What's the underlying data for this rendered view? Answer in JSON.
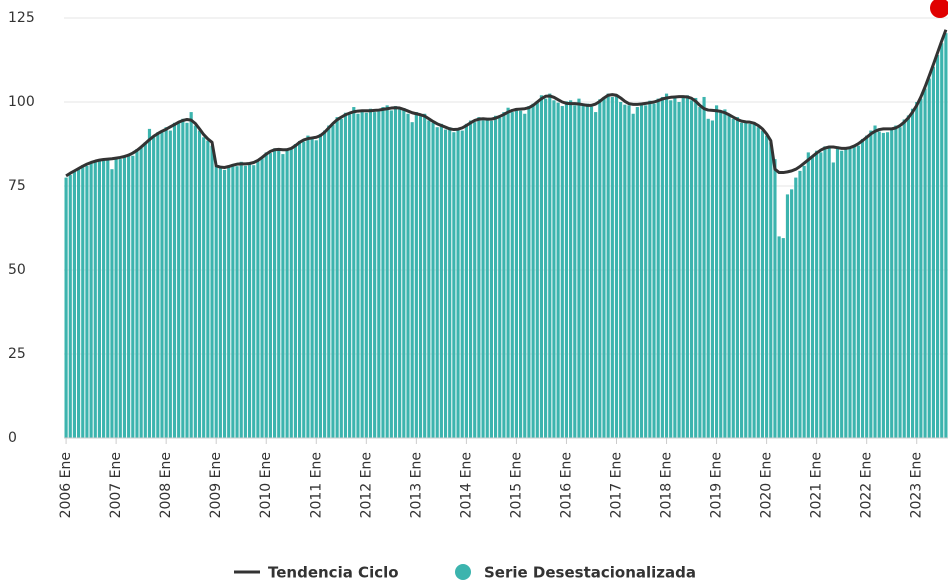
{
  "chart_data": {
    "type": "bar",
    "categories": [
      "2006 Ene",
      null,
      null,
      null,
      null,
      null,
      null,
      null,
      null,
      null,
      null,
      null,
      "2007 Ene",
      null,
      null,
      null,
      null,
      null,
      null,
      null,
      null,
      null,
      null,
      null,
      "2008 Ene",
      null,
      null,
      null,
      null,
      null,
      null,
      null,
      null,
      null,
      null,
      null,
      "2009 Ene",
      null,
      null,
      null,
      null,
      null,
      null,
      null,
      null,
      null,
      null,
      null,
      "2010 Ene",
      null,
      null,
      null,
      null,
      null,
      null,
      null,
      null,
      null,
      null,
      null,
      "2011 Ene",
      null,
      null,
      null,
      null,
      null,
      null,
      null,
      null,
      null,
      null,
      null,
      "2012 Ene",
      null,
      null,
      null,
      null,
      null,
      null,
      null,
      null,
      null,
      null,
      null,
      "2013 Ene",
      null,
      null,
      null,
      null,
      null,
      null,
      null,
      null,
      null,
      null,
      null,
      "2014 Ene",
      null,
      null,
      null,
      null,
      null,
      null,
      null,
      null,
      null,
      null,
      null,
      "2015 Ene",
      null,
      null,
      null,
      null,
      null,
      null,
      null,
      null,
      null,
      null,
      null,
      "2016 Ene",
      null,
      null,
      null,
      null,
      null,
      null,
      null,
      null,
      null,
      null,
      null,
      "2017 Ene",
      null,
      null,
      null,
      null,
      null,
      null,
      null,
      null,
      null,
      null,
      null,
      "2018 Ene",
      null,
      null,
      null,
      null,
      null,
      null,
      null,
      null,
      null,
      null,
      null,
      "2019 Ene",
      null,
      null,
      null,
      null,
      null,
      null,
      null,
      null,
      null,
      null,
      null,
      "2020 Ene",
      null,
      null,
      null,
      null,
      null,
      null,
      null,
      null,
      null,
      null,
      null,
      "2021 Ene",
      null,
      null,
      null,
      null,
      null,
      null,
      null,
      null,
      null,
      null,
      null,
      "2022 Ene",
      null,
      null,
      null,
      null,
      null,
      null,
      null,
      null,
      null,
      null,
      null,
      "2023 Ene",
      null,
      null,
      null,
      null,
      null,
      null,
      null
    ],
    "series": [
      {
        "name": "Tendencia Ciclo",
        "type": "line",
        "color": "#333333",
        "values": [
          78,
          78.8,
          79.5,
          80.2,
          80.9,
          81.5,
          82,
          82.4,
          82.7,
          82.9,
          83,
          83.1,
          83.3,
          83.5,
          83.8,
          84.2,
          84.8,
          85.6,
          86.6,
          87.7,
          88.8,
          89.8,
          90.6,
          91.3,
          91.9,
          92.6,
          93.3,
          94,
          94.5,
          94.8,
          94.6,
          93.6,
          92,
          90.3,
          89,
          88,
          81,
          80.6,
          80.5,
          80.8,
          81.2,
          81.5,
          81.6,
          81.6,
          81.7,
          82,
          82.6,
          83.5,
          84.5,
          85.3,
          85.8,
          85.9,
          85.8,
          85.8,
          86.2,
          87,
          88,
          88.7,
          89.1,
          89.3,
          89.5,
          90,
          91,
          92.3,
          93.6,
          94.7,
          95.5,
          96.2,
          96.7,
          97.1,
          97.3,
          97.4,
          97.4,
          97.4,
          97.5,
          97.6,
          97.8,
          98,
          98.2,
          98.3,
          98.2,
          97.8,
          97.3,
          96.8,
          96.5,
          96.2,
          95.8,
          95,
          94.2,
          93.5,
          93,
          92.5,
          92,
          91.8,
          91.9,
          92.3,
          93,
          93.8,
          94.5,
          94.9,
          95,
          94.9,
          94.9,
          95.2,
          95.7,
          96.3,
          97,
          97.5,
          97.8,
          97.9,
          98,
          98.3,
          99,
          100,
          101,
          101.7,
          101.8,
          101.4,
          100.7,
          100,
          99.6,
          99.5,
          99.5,
          99.4,
          99.2,
          99,
          99,
          99.4,
          100.2,
          101.2,
          102,
          102.2,
          102,
          101.2,
          100.2,
          99.5,
          99.3,
          99.3,
          99.4,
          99.6,
          99.8,
          100,
          100.4,
          100.9,
          101.2,
          101.4,
          101.5,
          101.6,
          101.6,
          101.5,
          101.1,
          100.2,
          99,
          98,
          97.6,
          97.5,
          97.4,
          97.2,
          96.8,
          96.2,
          95.5,
          94.8,
          94.3,
          94.1,
          94,
          93.7,
          93,
          92,
          90.5,
          88.5,
          80,
          79,
          79,
          79.2,
          79.5,
          80,
          80.8,
          81.8,
          82.8,
          83.8,
          84.8,
          85.7,
          86.3,
          86.6,
          86.6,
          86.4,
          86.2,
          86.2,
          86.4,
          86.9,
          87.6,
          88.5,
          89.5,
          90.5,
          91.3,
          91.8,
          92,
          92,
          92,
          92.3,
          93,
          94,
          95.3,
          97,
          99,
          101.5,
          104.5,
          107.8,
          111.2,
          114.7,
          118.2,
          121.5
        ]
      },
      {
        "name": "Serie Desestacionalizada",
        "type": "bar",
        "color": "#3cb4ae",
        "values": [
          77.5,
          78.3,
          79.6,
          80,
          81.2,
          81,
          82.3,
          82.1,
          82.9,
          82.5,
          83.2,
          80,
          83.5,
          83,
          84.1,
          84.5,
          84,
          86,
          86.4,
          88,
          92,
          89.5,
          91,
          91,
          92.5,
          91.5,
          93.8,
          94.2,
          95,
          93.8,
          97,
          93,
          91.5,
          89.5,
          88.5,
          87,
          81,
          80.2,
          79.8,
          80.5,
          81,
          80.9,
          82.2,
          81,
          81.5,
          81.2,
          82.8,
          83.2,
          85,
          84.8,
          86.2,
          85.5,
          84.5,
          86.2,
          86,
          87.5,
          88.4,
          88.2,
          90,
          89,
          88.6,
          90.5,
          91.5,
          93,
          93.2,
          95.5,
          95,
          96.8,
          96.3,
          98.5,
          96.5,
          97,
          96.8,
          98,
          97,
          97.2,
          98.5,
          99,
          97.5,
          98.8,
          97.9,
          98.2,
          96.5,
          94,
          97,
          95.8,
          96.5,
          94.5,
          93.8,
          92.5,
          93.5,
          91.8,
          92.5,
          91,
          92.2,
          91.5,
          93.5,
          94.5,
          94,
          95.5,
          94.5,
          95.2,
          94.4,
          95.9,
          95.3,
          97,
          98.3,
          97,
          98.2,
          97.4,
          96.5,
          98.8,
          99.5,
          100.3,
          102,
          101,
          102.5,
          100.5,
          99.8,
          98.8,
          100.2,
          100.5,
          99,
          101,
          98.8,
          99.5,
          98.6,
          97,
          100.8,
          101,
          102.5,
          101.5,
          101.8,
          100,
          99.2,
          99,
          96.5,
          98.5,
          99.8,
          99,
          100.4,
          99.5,
          101,
          101.5,
          102.5,
          100.5,
          101.5,
          100,
          101.8,
          102,
          100.5,
          101.2,
          98.5,
          101.5,
          95,
          94.5,
          99,
          97.5,
          97.8,
          96,
          95,
          95.5,
          93.8,
          94.5,
          93.5,
          94,
          92.5,
          91.5,
          90,
          88,
          83,
          60,
          59.5,
          72.5,
          74,
          77.5,
          79.5,
          81,
          85,
          83.5,
          85.5,
          85,
          86.8,
          86.2,
          82,
          86.8,
          85.5,
          86.5,
          86,
          87.2,
          87,
          89,
          90,
          91.5,
          93,
          91.2,
          90.8,
          91,
          92,
          93,
          92.5,
          94.8,
          96,
          98,
          100,
          101,
          104,
          107,
          110.5,
          114,
          117.5,
          120.5
        ]
      }
    ],
    "ylim": [
      0,
      125
    ],
    "yticks": [
      0,
      25,
      50,
      75,
      100,
      125
    ],
    "grid": true
  }
}
